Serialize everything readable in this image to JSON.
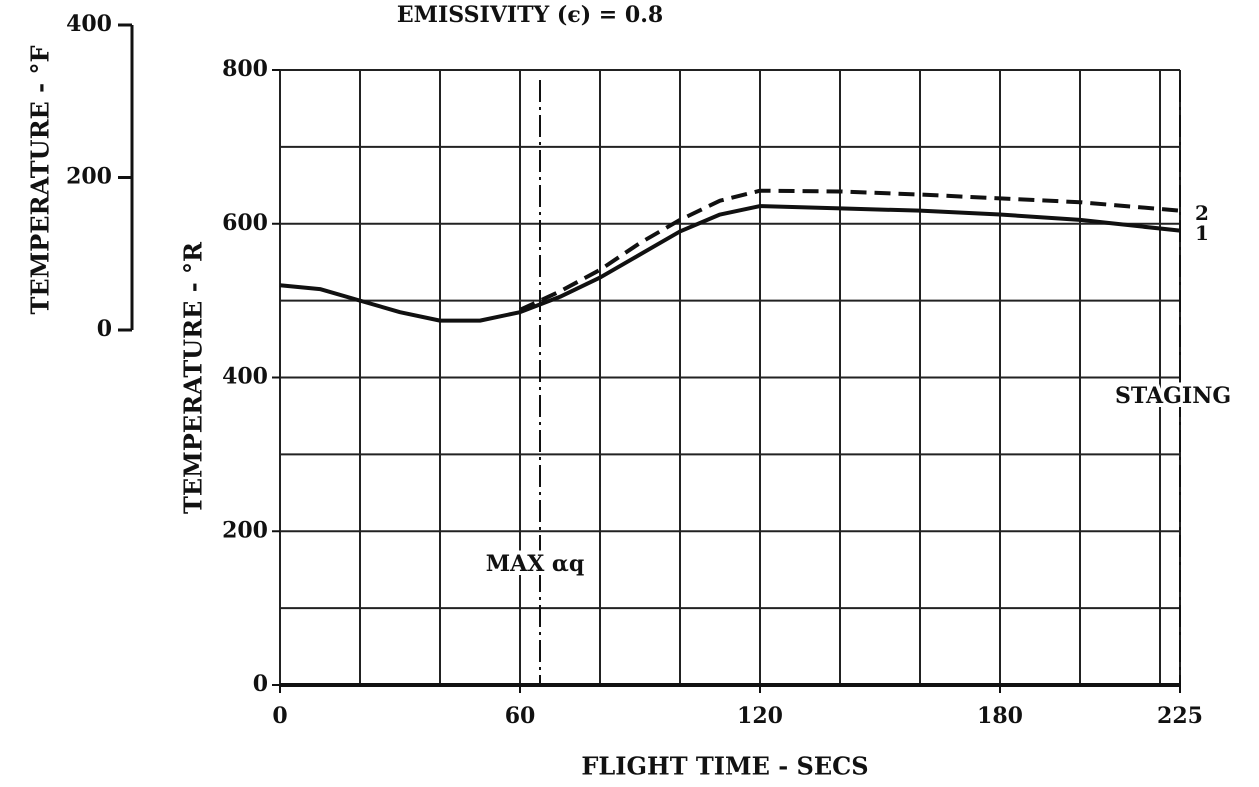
{
  "chart_data": {
    "type": "line",
    "title": "EMISSIVITY (ϵ) = 0.8",
    "x_label": "FLIGHT TIME - SECS",
    "y_label": "TEMPERATURE - °R",
    "y2_label": "TEMPERATURE - °F",
    "x": [
      0,
      10,
      20,
      30,
      40,
      50,
      60,
      70,
      80,
      90,
      100,
      110,
      120,
      140,
      160,
      180,
      200,
      225
    ],
    "series": [
      {
        "name": "1",
        "color": "#111111",
        "dash": false,
        "values": [
          520,
          515,
          500,
          485,
          474,
          474,
          485,
          505,
          530,
          560,
          590,
          612,
          623,
          620,
          617,
          612,
          605,
          591
        ]
      },
      {
        "name": "2",
        "color": "#111111",
        "dash": true,
        "values": [
          null,
          null,
          null,
          null,
          null,
          null,
          488,
          512,
          540,
          575,
          605,
          630,
          643,
          642,
          638,
          633,
          628,
          617
        ]
      }
    ],
    "xlim": [
      0,
      225
    ],
    "ylim": [
      0,
      800
    ],
    "xticks": [
      0,
      60,
      120,
      180,
      225
    ],
    "yticks": [
      0,
      200,
      400,
      600,
      800
    ],
    "xgrid": [
      0,
      20,
      40,
      60,
      80,
      100,
      120,
      140,
      160,
      180,
      200,
      220,
      225
    ],
    "ygrid": [
      0,
      100,
      200,
      300,
      400,
      500,
      600,
      700,
      800
    ],
    "y2lim": [
      0,
      400
    ],
    "y2ticks": [
      0,
      200,
      400
    ],
    "grid": true,
    "annotations": [
      {
        "x": 65,
        "text": "MAX αq"
      },
      {
        "x": 225,
        "text": "STAGING"
      }
    ]
  }
}
